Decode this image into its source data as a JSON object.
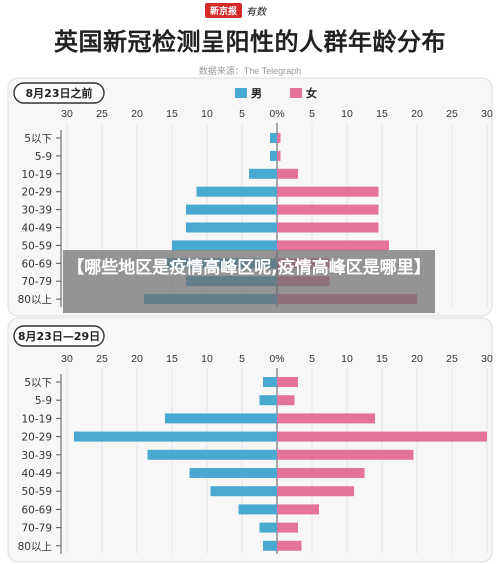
{
  "header": {
    "logo_left": "新京报",
    "logo_right": "有数",
    "title": "英国新冠检测呈阳性的人群年龄分布",
    "source": "数据来源：The Telegraph"
  },
  "overlay": {
    "text": "【哪些地区是疫情高峰区呢,疫情高峰区是哪里】"
  },
  "colors": {
    "male": "#4aa9d0",
    "female": "#e4739c",
    "axis": "#333333",
    "grid": "#e6e6e6"
  },
  "chart_data": [
    {
      "type": "bar",
      "orientation": "horizontal-diverging",
      "title": "8月23日之前",
      "categories": [
        "5以下",
        "5-9",
        "10-19",
        "20-29",
        "30-39",
        "40-49",
        "50-59",
        "60-69",
        "70-79",
        "80以上"
      ],
      "series": [
        {
          "name": "男",
          "values": [
            1,
            1,
            4,
            11.5,
            13,
            13,
            15,
            16,
            13,
            19
          ]
        },
        {
          "name": "女",
          "values": [
            0.5,
            0.5,
            3,
            14.5,
            14.5,
            14.5,
            16,
            7.5,
            7.5,
            20
          ]
        }
      ],
      "tick_labels": [
        "30",
        "25",
        "20",
        "15",
        "10",
        "5",
        "0%",
        "5",
        "10",
        "15",
        "20",
        "25",
        "30"
      ],
      "xlim": [
        -30,
        30
      ],
      "legend": "top-right",
      "grid": true
    },
    {
      "type": "bar",
      "orientation": "horizontal-diverging",
      "title": "8月23日—29日",
      "categories": [
        "5以下",
        "5-9",
        "10-19",
        "20-29",
        "30-39",
        "40-49",
        "50-59",
        "60-69",
        "70-79",
        "80以上"
      ],
      "series": [
        {
          "name": "男",
          "values": [
            2,
            2.5,
            16,
            29,
            18.5,
            12.5,
            9.5,
            5.5,
            2.5,
            2
          ]
        },
        {
          "name": "女",
          "values": [
            3,
            2.5,
            14,
            30,
            19.5,
            12.5,
            11,
            6,
            3,
            3.5
          ]
        }
      ],
      "tick_labels": [
        "30",
        "25",
        "20",
        "15",
        "10",
        "5",
        "0%",
        "5",
        "10",
        "15",
        "20",
        "25",
        "30"
      ],
      "xlim": [
        -30,
        30
      ],
      "grid": true
    }
  ]
}
